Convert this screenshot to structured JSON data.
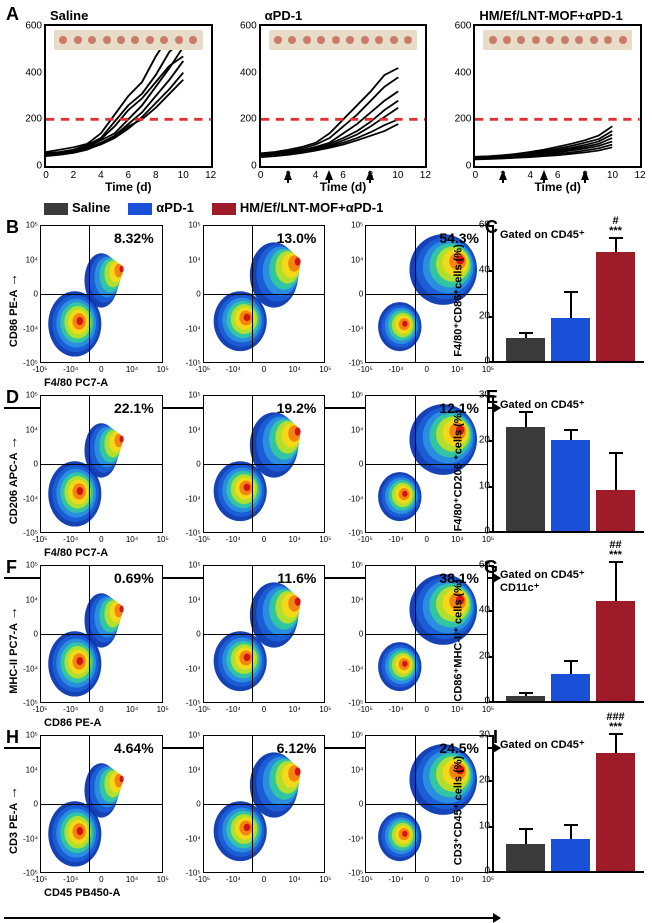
{
  "panelA": {
    "label": "A",
    "ylabel": "",
    "xlabel": "Time (d)",
    "ylim": [
      0,
      600
    ],
    "ytick_step": 200,
    "xlim": [
      0,
      12
    ],
    "xtick_step": 2,
    "threshold_y": 200,
    "threshold_color": "#e03030",
    "conditions": [
      {
        "title": "Saline",
        "dose_days": [],
        "series": [
          [
            [
              0,
              60
            ],
            [
              1,
              70
            ],
            [
              2,
              80
            ],
            [
              3,
              95
            ],
            [
              4,
              140
            ],
            [
              5,
              220
            ],
            [
              6,
              300
            ],
            [
              7,
              360
            ],
            [
              8,
              470
            ],
            [
              9,
              560
            ],
            [
              10,
              580
            ]
          ],
          [
            [
              0,
              55
            ],
            [
              1,
              60
            ],
            [
              2,
              70
            ],
            [
              3,
              90
            ],
            [
              4,
              120
            ],
            [
              5,
              190
            ],
            [
              6,
              260
            ],
            [
              7,
              310
            ],
            [
              8,
              390
            ],
            [
              9,
              490
            ],
            [
              10,
              540
            ]
          ],
          [
            [
              0,
              50
            ],
            [
              1,
              58
            ],
            [
              2,
              66
            ],
            [
              3,
              80
            ],
            [
              4,
              110
            ],
            [
              5,
              140
            ],
            [
              6,
              200
            ],
            [
              7,
              260
            ],
            [
              8,
              340
            ],
            [
              9,
              420
            ],
            [
              10,
              510
            ]
          ],
          [
            [
              0,
              45
            ],
            [
              1,
              55
            ],
            [
              2,
              62
            ],
            [
              3,
              74
            ],
            [
              4,
              100
            ],
            [
              5,
              130
            ],
            [
              6,
              180
            ],
            [
              7,
              230
            ],
            [
              8,
              300
            ],
            [
              9,
              370
            ],
            [
              10,
              450
            ]
          ],
          [
            [
              0,
              48
            ],
            [
              1,
              52
            ],
            [
              2,
              60
            ],
            [
              3,
              72
            ],
            [
              4,
              92
            ],
            [
              5,
              120
            ],
            [
              6,
              160
            ],
            [
              7,
              210
            ],
            [
              8,
              270
            ],
            [
              9,
              330
            ],
            [
              10,
              400
            ]
          ],
          [
            [
              0,
              52
            ],
            [
              1,
              58
            ],
            [
              2,
              68
            ],
            [
              3,
              85
            ],
            [
              4,
              115
            ],
            [
              5,
              170
            ],
            [
              6,
              240
            ],
            [
              7,
              290
            ],
            [
              8,
              360
            ],
            [
              9,
              430
            ],
            [
              10,
              470
            ]
          ],
          [
            [
              0,
              42
            ],
            [
              1,
              48
            ],
            [
              2,
              56
            ],
            [
              3,
              70
            ],
            [
              4,
              95
            ],
            [
              5,
              125
            ],
            [
              6,
              170
            ],
            [
              7,
              200
            ],
            [
              8,
              250
            ],
            [
              9,
              310
            ],
            [
              10,
              370
            ]
          ]
        ]
      },
      {
        "title": "αPD-1",
        "dose_days": [
          2,
          5,
          8
        ],
        "series": [
          [
            [
              0,
              55
            ],
            [
              1,
              60
            ],
            [
              2,
              70
            ],
            [
              3,
              82
            ],
            [
              4,
              100
            ],
            [
              5,
              140
            ],
            [
              6,
              200
            ],
            [
              7,
              260
            ],
            [
              8,
              320
            ],
            [
              9,
              390
            ],
            [
              10,
              420
            ]
          ],
          [
            [
              0,
              50
            ],
            [
              1,
              55
            ],
            [
              2,
              63
            ],
            [
              3,
              75
            ],
            [
              4,
              92
            ],
            [
              5,
              120
            ],
            [
              6,
              170
            ],
            [
              7,
              220
            ],
            [
              8,
              280
            ],
            [
              9,
              340
            ],
            [
              10,
              380
            ]
          ],
          [
            [
              0,
              48
            ],
            [
              1,
              52
            ],
            [
              2,
              58
            ],
            [
              3,
              68
            ],
            [
              4,
              82
            ],
            [
              5,
              100
            ],
            [
              6,
              140
            ],
            [
              7,
              180
            ],
            [
              8,
              230
            ],
            [
              9,
              280
            ],
            [
              10,
              320
            ]
          ],
          [
            [
              0,
              45
            ],
            [
              1,
              50
            ],
            [
              2,
              56
            ],
            [
              3,
              64
            ],
            [
              4,
              78
            ],
            [
              5,
              95
            ],
            [
              6,
              120
            ],
            [
              7,
              150
            ],
            [
              8,
              190
            ],
            [
              9,
              240
            ],
            [
              10,
              280
            ]
          ],
          [
            [
              0,
              42
            ],
            [
              1,
              46
            ],
            [
              2,
              52
            ],
            [
              3,
              60
            ],
            [
              4,
              72
            ],
            [
              5,
              88
            ],
            [
              6,
              110
            ],
            [
              7,
              135
            ],
            [
              8,
              170
            ],
            [
              9,
              210
            ],
            [
              10,
              250
            ]
          ],
          [
            [
              0,
              40
            ],
            [
              1,
              44
            ],
            [
              2,
              50
            ],
            [
              3,
              58
            ],
            [
              4,
              70
            ],
            [
              5,
              84
            ],
            [
              6,
              100
            ],
            [
              7,
              120
            ],
            [
              8,
              145
            ],
            [
              9,
              175
            ],
            [
              10,
              200
            ]
          ],
          [
            [
              0,
              38
            ],
            [
              1,
              42
            ],
            [
              2,
              48
            ],
            [
              3,
              56
            ],
            [
              4,
              66
            ],
            [
              5,
              78
            ],
            [
              6,
              92
            ],
            [
              7,
              110
            ],
            [
              8,
              130
            ],
            [
              9,
              150
            ],
            [
              10,
              180
            ]
          ]
        ]
      },
      {
        "title": "HM/Ef/LNT-MOF+αPD-1",
        "dose_days": [
          2,
          5,
          8
        ],
        "series": [
          [
            [
              0,
              40
            ],
            [
              1,
              42
            ],
            [
              2,
              46
            ],
            [
              3,
              52
            ],
            [
              4,
              60
            ],
            [
              5,
              70
            ],
            [
              6,
              82
            ],
            [
              7,
              95
            ],
            [
              8,
              110
            ],
            [
              9,
              130
            ],
            [
              10,
              170
            ]
          ],
          [
            [
              0,
              38
            ],
            [
              1,
              40
            ],
            [
              2,
              44
            ],
            [
              3,
              50
            ],
            [
              4,
              56
            ],
            [
              5,
              64
            ],
            [
              6,
              74
            ],
            [
              7,
              86
            ],
            [
              8,
              100
            ],
            [
              9,
              115
            ],
            [
              10,
              150
            ]
          ],
          [
            [
              0,
              36
            ],
            [
              1,
              38
            ],
            [
              2,
              42
            ],
            [
              3,
              46
            ],
            [
              4,
              52
            ],
            [
              5,
              60
            ],
            [
              6,
              68
            ],
            [
              7,
              78
            ],
            [
              8,
              90
            ],
            [
              9,
              105
            ],
            [
              10,
              135
            ]
          ],
          [
            [
              0,
              34
            ],
            [
              1,
              36
            ],
            [
              2,
              40
            ],
            [
              3,
              44
            ],
            [
              4,
              50
            ],
            [
              5,
              56
            ],
            [
              6,
              64
            ],
            [
              7,
              72
            ],
            [
              8,
              82
            ],
            [
              9,
              95
            ],
            [
              10,
              120
            ]
          ],
          [
            [
              0,
              32
            ],
            [
              1,
              34
            ],
            [
              2,
              38
            ],
            [
              3,
              42
            ],
            [
              4,
              46
            ],
            [
              5,
              52
            ],
            [
              6,
              58
            ],
            [
              7,
              66
            ],
            [
              8,
              75
            ],
            [
              9,
              86
            ],
            [
              10,
              105
            ]
          ],
          [
            [
              0,
              30
            ],
            [
              1,
              32
            ],
            [
              2,
              35
            ],
            [
              3,
              38
            ],
            [
              4,
              42
            ],
            [
              5,
              46
            ],
            [
              6,
              52
            ],
            [
              7,
              58
            ],
            [
              8,
              66
            ],
            [
              9,
              76
            ],
            [
              10,
              92
            ]
          ],
          [
            [
              0,
              28
            ],
            [
              1,
              30
            ],
            [
              2,
              32
            ],
            [
              3,
              35
            ],
            [
              4,
              38
            ],
            [
              5,
              42
            ],
            [
              6,
              46
            ],
            [
              7,
              52
            ],
            [
              8,
              58
            ],
            [
              9,
              66
            ],
            [
              10,
              80
            ]
          ]
        ]
      }
    ]
  },
  "legend": {
    "items": [
      {
        "label": "Saline",
        "color": "#3a3a3a"
      },
      {
        "label": "αPD-1",
        "color": "#1a4fd8"
      },
      {
        "label": "HM/Ef/LNT-MOF+αPD-1",
        "color": "#9d1c28"
      }
    ]
  },
  "flow_style": {
    "density_colors": [
      "#0838b0",
      "#1a5fd8",
      "#2a90e0",
      "#32c8a0",
      "#b8e028",
      "#f8d818",
      "#f88010",
      "#d01010"
    ],
    "axis_ticks": [
      "-10⁵",
      "-10⁴",
      "0",
      "10⁴",
      "10⁵"
    ]
  },
  "panelB": {
    "label": "B",
    "y_axis": "CD86 PE-A",
    "x_axis": "F4/80 PC7-A",
    "percents": [
      "8.32%",
      "13.0%",
      "54.3%"
    ],
    "quad_x": 0.4,
    "quad_y": 0.5
  },
  "panelC": {
    "label": "C",
    "ylabel": "F4/80⁺CD86⁺cells (%)",
    "gate": "Gated on CD45⁺",
    "ylim": [
      0,
      60
    ],
    "ytick_step": 20,
    "bars": [
      {
        "value": 10,
        "err": 2,
        "color": "#3a3a3a"
      },
      {
        "value": 19,
        "err": 11,
        "color": "#1a4fd8"
      },
      {
        "value": 48,
        "err": 6,
        "color": "#9d1c28",
        "sig": [
          "***",
          "#"
        ]
      }
    ]
  },
  "panelD": {
    "label": "D",
    "y_axis": "CD206 APC-A",
    "x_axis": "F4/80 PC7-A",
    "percents": [
      "22.1%",
      "19.2%",
      "12.1%"
    ],
    "quad_x": 0.4,
    "quad_y": 0.5
  },
  "panelE": {
    "label": "E",
    "ylabel": "F4/80⁺CD206 ⁺cells (%)",
    "gate": "Gated on CD45⁺",
    "ylim": [
      0,
      30
    ],
    "ytick_step": 10,
    "bars": [
      {
        "value": 23,
        "err": 3,
        "color": "#3a3a3a"
      },
      {
        "value": 20,
        "err": 2,
        "color": "#1a4fd8"
      },
      {
        "value": 9,
        "err": 8,
        "color": "#9d1c28"
      }
    ]
  },
  "panelF": {
    "label": "F",
    "y_axis": "MHC-II PC7-A",
    "x_axis": "CD86 PE-A",
    "percents": [
      "0.69%",
      "11.6%",
      "38.1%"
    ],
    "quad_x": 0.4,
    "quad_y": 0.5
  },
  "panelG": {
    "label": "G",
    "ylabel": "CD86⁺MHC-II⁺ cells (%)",
    "gate": "Gated on CD45⁺ CD11c⁺",
    "ylim": [
      0,
      60
    ],
    "ytick_step": 20,
    "bars": [
      {
        "value": 2,
        "err": 1,
        "color": "#3a3a3a"
      },
      {
        "value": 12,
        "err": 5,
        "color": "#1a4fd8"
      },
      {
        "value": 44,
        "err": 17,
        "color": "#9d1c28",
        "sig": [
          "***",
          "##"
        ]
      }
    ]
  },
  "panelH": {
    "label": "H",
    "y_axis": "CD3 PE-A",
    "x_axis": "CD45 PB450-A",
    "percents": [
      "4.64%",
      "6.12%",
      "24.5%"
    ],
    "quad_x": 0.4,
    "quad_y": 0.5
  },
  "panelI": {
    "label": "I",
    "ylabel": "CD3⁺CD45⁺ cells (%)",
    "gate": "Gated on CD45⁺",
    "ylim": [
      0,
      30
    ],
    "ytick_step": 10,
    "bars": [
      {
        "value": 6,
        "err": 3,
        "color": "#3a3a3a"
      },
      {
        "value": 7,
        "err": 3,
        "color": "#1a4fd8"
      },
      {
        "value": 26,
        "err": 4,
        "color": "#9d1c28",
        "sig": [
          "***",
          "###"
        ]
      }
    ]
  }
}
